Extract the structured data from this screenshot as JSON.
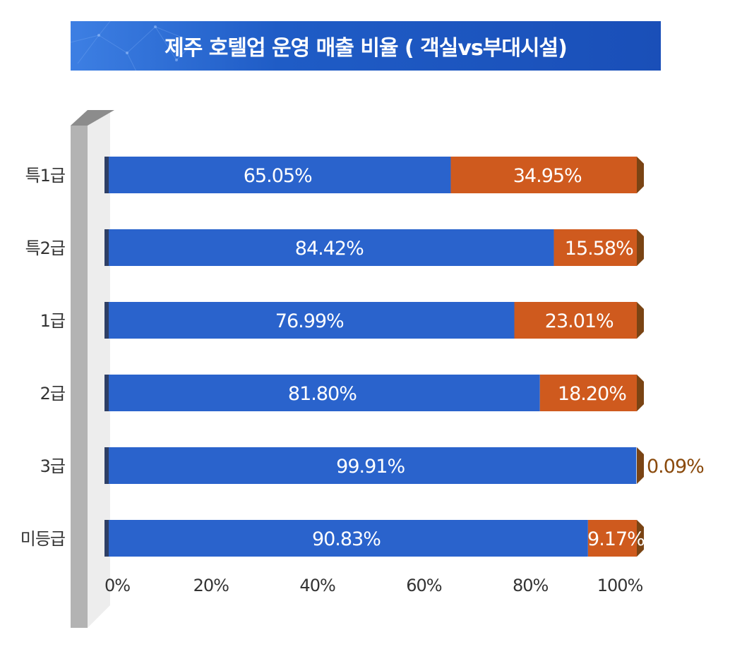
{
  "chart_data": {
    "type": "bar",
    "orientation": "horizontal",
    "stacked": true,
    "title": "제주 호텔업 운영 매출 비율 ( 객실vs부대시설)",
    "categories": [
      "특1급",
      "특2급",
      "1급",
      "2급",
      "3급",
      "미등급"
    ],
    "series": [
      {
        "values": [
          65.05,
          84.42,
          76.99,
          81.8,
          99.91,
          90.83
        ],
        "labels": [
          "65.05%",
          "84.42%",
          "76.99%",
          "81.80%",
          "99.91%",
          "90.83%"
        ]
      },
      {
        "values": [
          34.95,
          15.58,
          23.01,
          18.2,
          0.09,
          9.17
        ],
        "labels": [
          "34.95%",
          "15.58%",
          "23.01%",
          "18.20%",
          "0.09%",
          "9.17%"
        ]
      }
    ],
    "x_ticks": [
      "0%",
      "20%",
      "40%",
      "60%",
      "80%",
      "100%"
    ],
    "xlim": [
      0,
      100
    ],
    "grid": false,
    "legend": "none",
    "colors": {
      "series1": "#2a63cc",
      "series2": "#cf5a1e",
      "series1_side": "#2e3f66",
      "series2_side": "#7a4414",
      "outside_label": "#8a4a0c"
    }
  }
}
